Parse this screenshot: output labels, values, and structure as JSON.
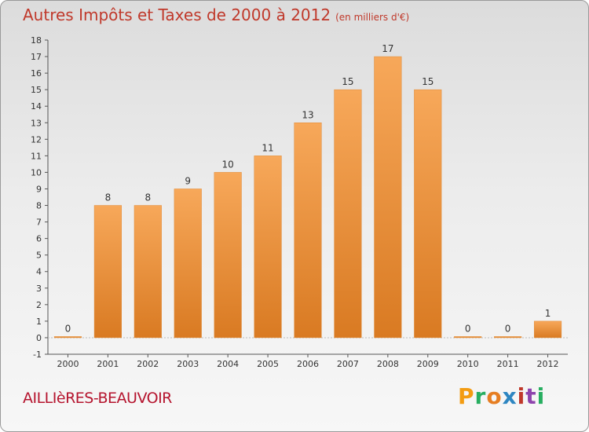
{
  "header": {
    "title": "Autres Impôts et Taxes de 2000 à 2012",
    "unit": "(en milliers d'€)"
  },
  "footer": {
    "commune": "AILLIèRES-BEAUVOIR",
    "logo": [
      "P",
      "r",
      "o",
      "x",
      "i",
      "t",
      "i"
    ]
  },
  "colors": {
    "bar_top": "#f7a85a",
    "bar_bottom": "#d97a22",
    "title": "#c0392b",
    "commune": "#b5142e",
    "logo": [
      "#f39c12",
      "#27ae60",
      "#e67e22",
      "#2e86c1",
      "#c0392b",
      "#8e44ad",
      "#27ae60"
    ]
  },
  "chart_data": {
    "type": "bar",
    "categories": [
      "2000",
      "2001",
      "2002",
      "2003",
      "2004",
      "2005",
      "2006",
      "2007",
      "2008",
      "2009",
      "2010",
      "2011",
      "2012"
    ],
    "values": [
      0,
      8,
      8,
      9,
      10,
      11,
      13,
      15,
      17,
      15,
      0,
      0,
      1
    ],
    "data_labels": [
      "0",
      "8",
      "8",
      "9",
      "10",
      "11",
      "13",
      "15",
      "17",
      "15",
      "0",
      "0",
      "1"
    ],
    "yticks": [
      "-1",
      "0",
      "1",
      "2",
      "3",
      "4",
      "5",
      "6",
      "7",
      "8",
      "9",
      "10",
      "11",
      "12",
      "13",
      "14",
      "15",
      "16",
      "17",
      "18"
    ],
    "ylim": [
      -1,
      18
    ],
    "grid": false
  }
}
